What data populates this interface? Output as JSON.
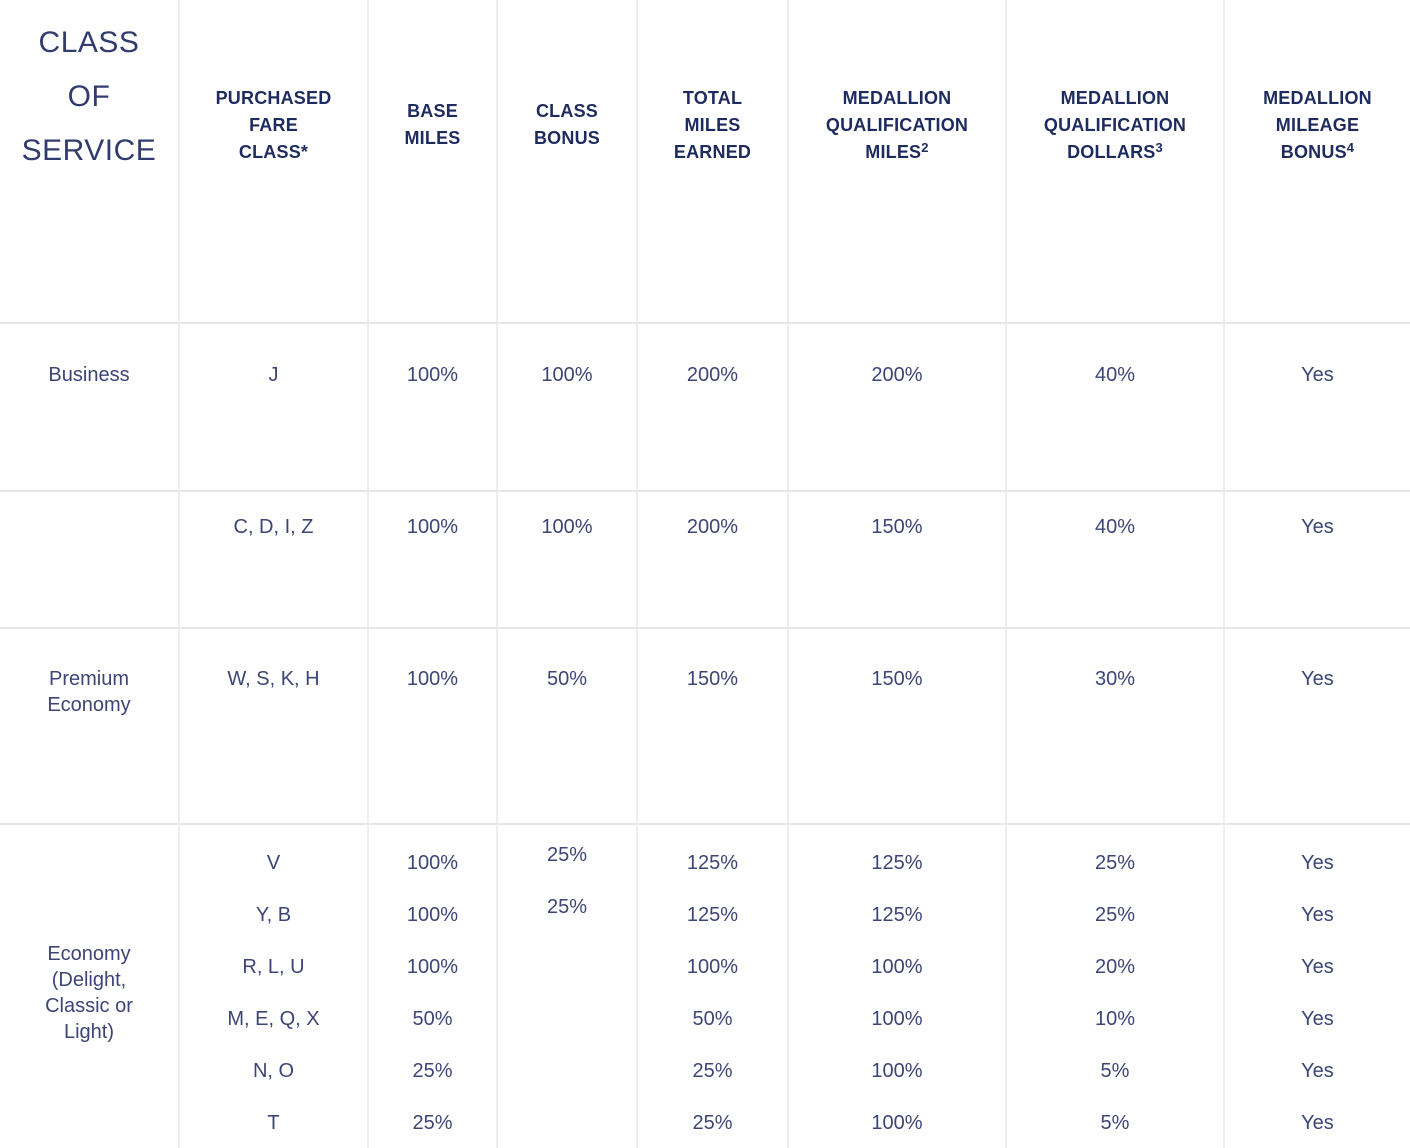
{
  "colors": {
    "header_text": "#1e2b5f",
    "body_text": "#3d4577",
    "class_of_service_text": "#313b6e",
    "border_vertical": "#edeef1",
    "border_horizontal": "#e5e7eb",
    "background": "#ffffff"
  },
  "header": {
    "class_of_service": {
      "lines": [
        "CLASS",
        "OF",
        "SERVICE"
      ]
    },
    "purchased_fare_class": {
      "lines": [
        "PURCHASED",
        "FARE",
        "CLASS*"
      ]
    },
    "base_miles": {
      "lines": [
        "BASE",
        "MILES"
      ]
    },
    "class_bonus": {
      "lines": [
        "CLASS",
        "BONUS"
      ]
    },
    "total_miles_earned": {
      "lines": [
        "TOTAL",
        "MILES",
        "EARNED"
      ]
    },
    "medallion_qualification_miles": {
      "lines": [
        "MEDALLION",
        "QUALIFICATION",
        "MILES"
      ],
      "sup": "2"
    },
    "medallion_qualification_dollars": {
      "lines": [
        "MEDALLION",
        "QUALIFICATION",
        "DOLLARS"
      ],
      "sup": "3"
    },
    "medallion_mileage_bonus": {
      "lines": [
        "MEDALLION",
        "MILEAGE",
        "BONUS"
      ],
      "sup": "4"
    }
  },
  "rows": [
    {
      "class_of_service": "Business",
      "fare_class": "J",
      "base_miles": "100%",
      "class_bonus": "100%",
      "total_miles_earned": "200%",
      "mqm": "200%",
      "mqd": "40%",
      "mileage_bonus": "Yes"
    },
    {
      "class_of_service": "",
      "fare_class": "C, D, I, Z",
      "base_miles": "100%",
      "class_bonus": "100%",
      "total_miles_earned": "200%",
      "mqm": "150%",
      "mqd": "40%",
      "mileage_bonus": "Yes"
    },
    {
      "class_of_service": "Premium Economy",
      "fare_class": "W, S, K, H",
      "base_miles": "100%",
      "class_bonus": "50%",
      "total_miles_earned": "150%",
      "mqm": "150%",
      "mqd": "30%",
      "mileage_bonus": "Yes"
    }
  ],
  "economy": {
    "class_of_service": "Economy (Delight, Classic or Light)",
    "subrows": [
      {
        "fare_class": "V",
        "base_miles": "100%",
        "class_bonus": "25%",
        "total_miles_earned": "125%",
        "mqm": "125%",
        "mqd": "25%",
        "mileage_bonus": "Yes"
      },
      {
        "fare_class": "Y, B",
        "base_miles": "100%",
        "class_bonus": "25%",
        "total_miles_earned": "125%",
        "mqm": "125%",
        "mqd": "25%",
        "mileage_bonus": "Yes"
      },
      {
        "fare_class": "R, L, U",
        "base_miles": "100%",
        "class_bonus": "",
        "total_miles_earned": "100%",
        "mqm": "100%",
        "mqd": "20%",
        "mileage_bonus": "Yes"
      },
      {
        "fare_class": "M, E, Q, X",
        "base_miles": "50%",
        "class_bonus": "",
        "total_miles_earned": "50%",
        "mqm": "100%",
        "mqd": "10%",
        "mileage_bonus": "Yes"
      },
      {
        "fare_class": "N, O",
        "base_miles": "25%",
        "class_bonus": "",
        "total_miles_earned": "25%",
        "mqm": "100%",
        "mqd": "5%",
        "mileage_bonus": "Yes"
      },
      {
        "fare_class": "T",
        "base_miles": "25%",
        "class_bonus": "",
        "total_miles_earned": "25%",
        "mqm": "100%",
        "mqd": "5%",
        "mileage_bonus": "Yes"
      }
    ]
  }
}
